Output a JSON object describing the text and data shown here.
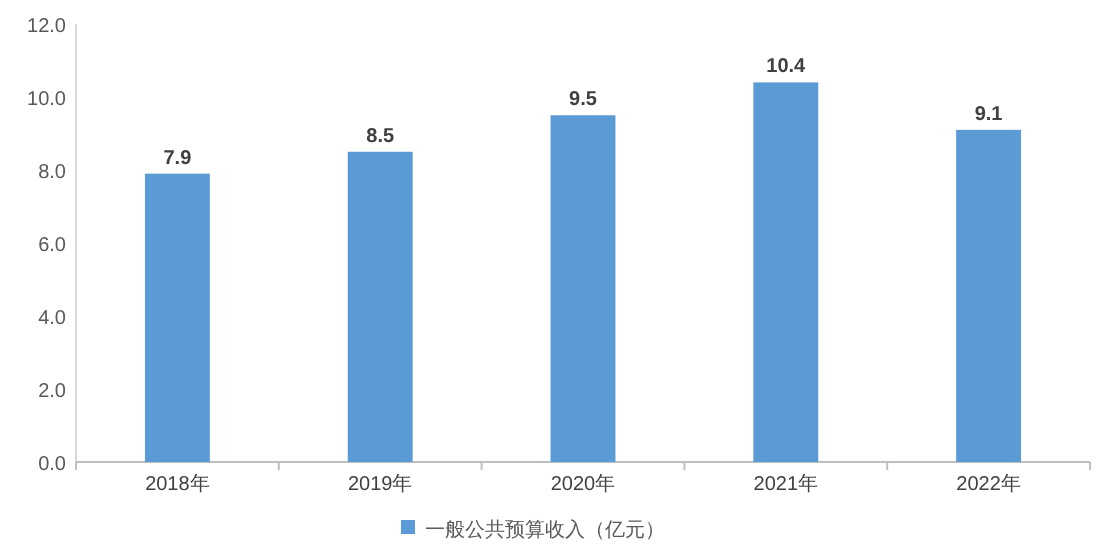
{
  "chart_data": {
    "type": "bar",
    "categories": [
      "2018年",
      "2019年",
      "2020年",
      "2021年",
      "2022年"
    ],
    "series": [
      {
        "name": "一般公共预算收入（亿元）",
        "color": "#5b9bd5",
        "values": [
          7.9,
          8.5,
          9.5,
          10.4,
          9.1
        ]
      }
    ],
    "ylim": [
      0,
      12
    ],
    "yticks": [
      {
        "value": 0,
        "label": "0.0"
      },
      {
        "value": 2,
        "label": "2.0"
      },
      {
        "value": 4,
        "label": "4.0"
      },
      {
        "value": 6,
        "label": "6.0"
      },
      {
        "value": 8,
        "label": "8.0"
      },
      {
        "value": 10,
        "label": "10.0"
      },
      {
        "value": 12,
        "label": "12.0"
      }
    ],
    "data_labels": true,
    "legend": "bottom",
    "grid": false
  }
}
